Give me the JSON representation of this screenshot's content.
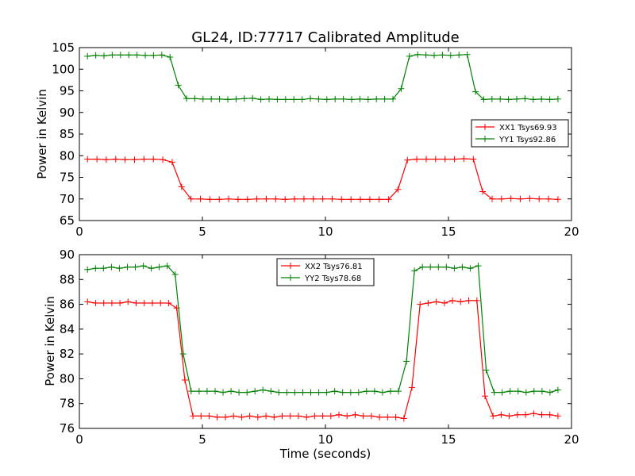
{
  "chart_data": [
    {
      "type": "line",
      "title": "GL24, ID:77717 Calibrated Amplitude",
      "xlabel": "",
      "ylabel": "Power in Kelvin",
      "xlim": [
        0,
        20
      ],
      "ylim": [
        65,
        105
      ],
      "x_ticks": [
        0,
        5,
        10,
        15,
        20
      ],
      "y_ticks": [
        65,
        70,
        75,
        80,
        85,
        90,
        95,
        100,
        105
      ],
      "grid": false,
      "legend_position": "center-right",
      "series": [
        {
          "name": "XX1 Tsys69.93",
          "color": "#ff0000",
          "values": [
            79.2,
            79.2,
            79.1,
            79.2,
            79.1,
            79.1,
            79.2,
            79.2,
            79.1,
            78.5,
            72.8,
            70.0,
            70.0,
            69.9,
            69.9,
            70.0,
            69.9,
            69.9,
            70.0,
            70.0,
            70.0,
            69.9,
            70.0,
            70.0,
            70.0,
            70.0,
            70.0,
            69.9,
            69.9,
            69.9,
            69.9,
            69.9,
            69.9,
            72.2,
            79.0,
            79.2,
            79.2,
            79.2,
            79.2,
            79.2,
            79.3,
            79.2,
            71.7,
            70.0,
            70.0,
            70.1,
            70.0,
            70.1,
            70.0,
            70.0,
            69.9
          ]
        },
        {
          "name": "YY1 Tsys92.86",
          "color": "#008000",
          "values": [
            103.0,
            103.2,
            103.1,
            103.3,
            103.3,
            103.3,
            103.3,
            103.2,
            103.2,
            103.3,
            102.8,
            96.3,
            93.2,
            93.2,
            93.1,
            93.1,
            93.1,
            93.0,
            93.1,
            93.2,
            93.3,
            93.0,
            93.1,
            93.0,
            93.0,
            93.0,
            93.0,
            93.2,
            93.1,
            93.0,
            93.1,
            93.1,
            93.0,
            93.1,
            93.0,
            93.1,
            93.1,
            93.1,
            95.5,
            103.0,
            103.4,
            103.3,
            103.2,
            103.3,
            103.2,
            103.3,
            103.4,
            94.8,
            93.0,
            93.1,
            93.1,
            93.0,
            93.1,
            93.2,
            93.0,
            93.1,
            93.0,
            93.1
          ]
        }
      ]
    },
    {
      "type": "line",
      "title": "",
      "xlabel": "Time (seconds)",
      "ylabel": "Power in Kelvin",
      "xlim": [
        0,
        20
      ],
      "ylim": [
        76,
        90
      ],
      "x_ticks": [
        0,
        5,
        10,
        15,
        20
      ],
      "y_ticks": [
        76,
        78,
        80,
        82,
        84,
        86,
        88,
        90
      ],
      "grid": false,
      "legend_position": "upper-center",
      "series": [
        {
          "name": "XX2 Tsys76.81",
          "color": "#ff0000",
          "values": [
            86.2,
            86.1,
            86.1,
            86.1,
            86.1,
            86.2,
            86.1,
            86.1,
            86.1,
            86.1,
            86.1,
            85.7,
            79.9,
            77.0,
            77.0,
            77.0,
            76.9,
            76.9,
            77.0,
            76.9,
            77.0,
            76.9,
            77.0,
            76.9,
            77.0,
            77.0,
            77.0,
            76.9,
            77.0,
            77.0,
            77.0,
            77.1,
            77.0,
            77.1,
            77.0,
            77.0,
            76.9,
            76.9,
            76.9,
            76.8,
            79.3,
            86.0,
            86.1,
            86.2,
            86.1,
            86.3,
            86.2,
            86.3,
            86.3,
            78.6,
            77.0,
            77.1,
            77.0,
            77.1,
            77.1,
            77.2,
            77.1,
            77.1,
            77.0
          ]
        },
        {
          "name": "YY2 Tsys78.68",
          "color": "#008000",
          "values": [
            88.8,
            88.9,
            88.9,
            89.0,
            88.9,
            89.0,
            89.0,
            89.1,
            88.9,
            89.0,
            89.1,
            88.4,
            82.0,
            79.0,
            79.0,
            79.0,
            79.0,
            78.9,
            79.0,
            78.9,
            78.9,
            79.0,
            79.1,
            79.0,
            78.9,
            78.9,
            78.9,
            78.9,
            78.9,
            78.9,
            78.9,
            79.0,
            78.9,
            78.9,
            78.9,
            79.0,
            79.0,
            78.9,
            79.0,
            79.0,
            81.4,
            88.7,
            89.0,
            89.0,
            89.0,
            89.0,
            88.9,
            89.0,
            88.9,
            89.1,
            80.7,
            78.9,
            78.9,
            79.0,
            79.0,
            78.9,
            79.0,
            79.0,
            78.9,
            79.1
          ]
        }
      ]
    }
  ]
}
